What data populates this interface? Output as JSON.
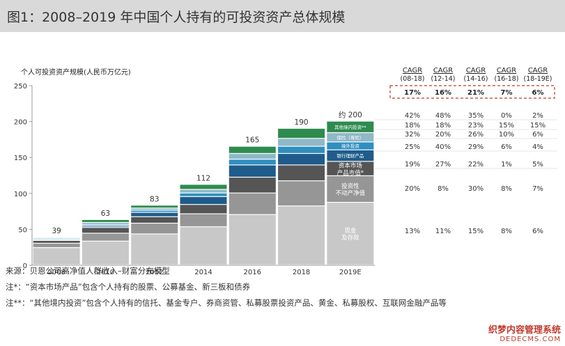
{
  "page_title": "图1：2008–2019 年中国个人持有的可投资资产总体规模",
  "chart_data": {
    "type": "bar",
    "stacked": true,
    "title": "图1：2008–2019 年中国个人持有的可投资资产总体规模",
    "ylabel": "个人可投资资产规模(人民币万亿元)",
    "ylim": [
      0,
      250
    ],
    "yticks": [
      0,
      50,
      100,
      150,
      200,
      250
    ],
    "categories": [
      "2008",
      "2010",
      "2012",
      "2014",
      "2016",
      "2018",
      "2019E"
    ],
    "totals": [
      "39",
      "63",
      "83",
      "112",
      "165",
      "190",
      "约 200"
    ],
    "series": [
      {
        "name": "现金及存款",
        "label": "现金\n及存款",
        "color": "#c8c8c8",
        "values": [
          24,
          33,
          43,
          53,
          70,
          82,
          87
        ]
      },
      {
        "name": "投资性不动产净值",
        "label": "投资性\n不动产净值",
        "color": "#969696",
        "values": [
          6,
          11,
          15,
          18,
          30,
          35,
          37
        ]
      },
      {
        "name": "资本市场产品市值",
        "label": "资本市场\n产品市值*",
        "color": "#555555",
        "values": [
          4,
          8,
          9,
          13,
          22,
          22,
          20
        ]
      },
      {
        "name": "银行理财产品",
        "label": "银行理财产品",
        "color": "#1f5c8b",
        "values": [
          1,
          2,
          6,
          11,
          17,
          16,
          16
        ]
      },
      {
        "name": "境外投资",
        "label": "境外投资",
        "color": "#2f8fbf",
        "values": [
          1.5,
          2,
          3,
          5,
          8,
          10,
          11
        ]
      },
      {
        "name": "保险（寿险）",
        "label": "保险（寿险）",
        "color": "#8fb8c8",
        "values": [
          1.5,
          3,
          3,
          5,
          8,
          11,
          13
        ]
      },
      {
        "name": "其他境内投资**",
        "label": "其他境内投资**",
        "color": "#2e8b4f",
        "values": [
          1,
          4,
          4,
          7,
          10,
          14,
          16
        ]
      }
    ],
    "cagr_headers": [
      "CAGR\n(08-18)",
      "CAGR\n(12-14)",
      "CAGR\n(14-16)",
      "CAGR\n(16-18)",
      "CAGR\n(18-19E)"
    ],
    "cagr_total": [
      "17%",
      "16%",
      "21%",
      "7%",
      "6%"
    ],
    "cagr_rows": [
      [
        "42%",
        "48%",
        "35%",
        "0%",
        "2%"
      ],
      [
        "18%",
        "18%",
        "23%",
        "15%",
        "15%"
      ],
      [
        "32%",
        "20%",
        "26%",
        "10%",
        "6%"
      ],
      [
        "25%",
        "40%",
        "29%",
        "6%",
        "4%"
      ],
      [
        "19%",
        "27%",
        "22%",
        "1%",
        "5%"
      ],
      [
        "20%",
        "8%",
        "30%",
        "8%",
        "7%"
      ],
      [
        "13%",
        "11%",
        "15%",
        "8%",
        "6%"
      ]
    ]
  },
  "notes": {
    "source": "来源：贝恩公司高净值人群收入–财富分布模型",
    "note1": "注*：“资本市场产品”包含个人持有的股票、公募基金、新三板和债券",
    "note2": "注**：“其他境内投资”包含个人持有的信托、基金专户、券商资管、私募股票投资产品、黄金、私募股权、互联网金融产品等"
  },
  "watermark": {
    "line1": "织梦内容管理系统",
    "line2": "DEDECMS.COM"
  }
}
